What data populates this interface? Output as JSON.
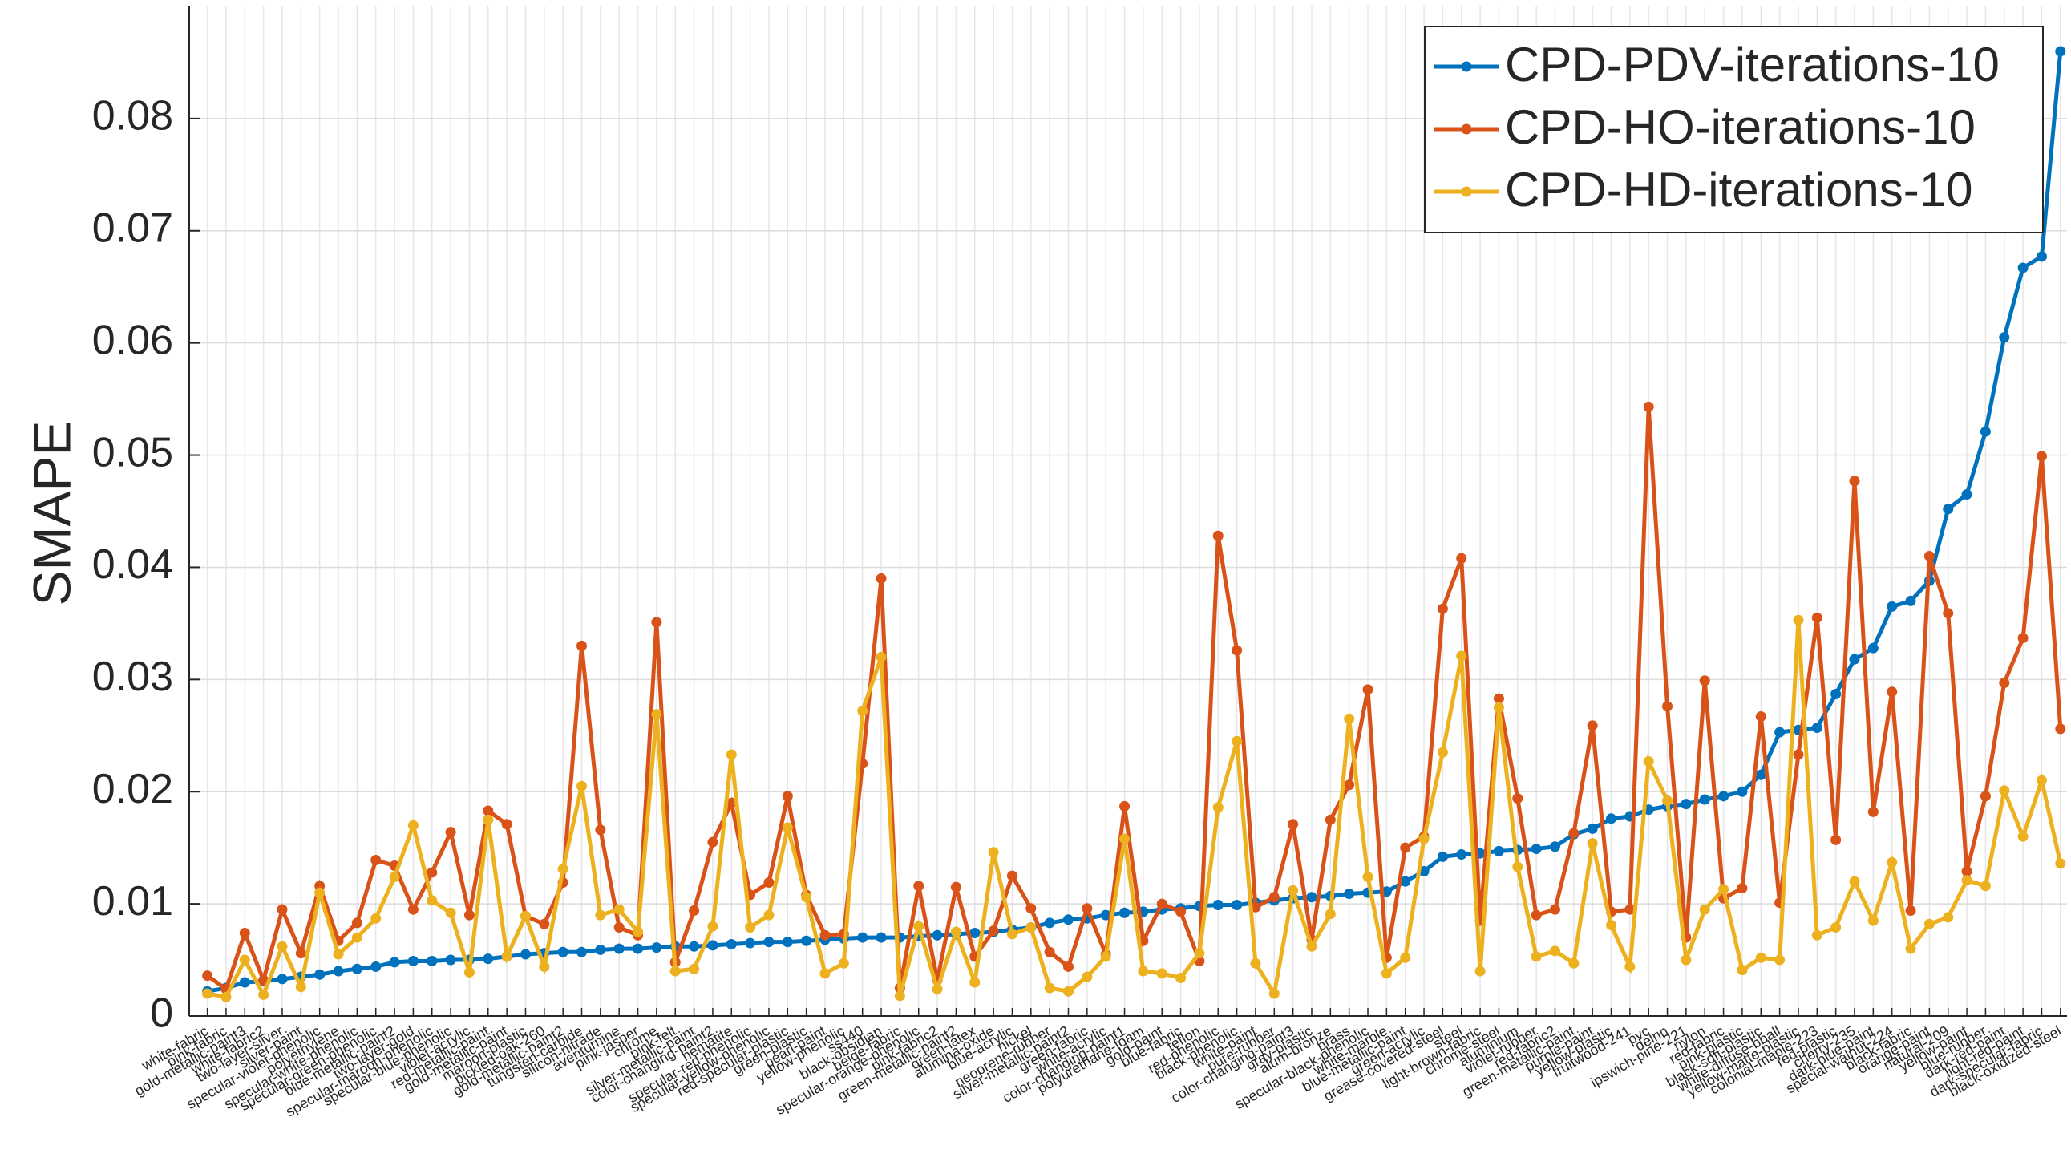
{
  "chart_data": {
    "type": "line",
    "y_label": "SMAPE",
    "categories": [
      "white-fabric",
      "pink-fabric",
      "gold-metallic-paint3",
      "white-fabric2",
      "two-layer-silver",
      "silver-paint",
      "specular-violet-phenolic",
      "polyethylene",
      "specular-white-phenolic",
      "specular-green-phenolic",
      "blue-metallic-paint2",
      "two-layer-gold",
      "specular-maroon-phenolic",
      "specular-blue-phenolic",
      "violet-acrylic",
      "red-metallic-paint",
      "gold-metallic-paint",
      "maroon-plastic",
      "pickled-oak-260",
      "gold-metallic-paint2",
      "tungsten-carbide",
      "silicon-nitrade",
      "aventurnine",
      "pink-jasper",
      "chrome",
      "pink-felt",
      "silver-metallic-paint",
      "color-changing-paint2",
      "hematite",
      "specular-red-phenolic",
      "specular-yellow-phenolic",
      "red-specular-plastic",
      "green-plastic",
      "pearl-paint",
      "yellow-phenolic",
      "ss440",
      "black-obsidian",
      "beige-fabric",
      "specular-orange-phenolic",
      "pink-fabric2",
      "green-metallic-paint2",
      "green-latex",
      "alumina-oxide",
      "blue-acrylic",
      "nickel",
      "neoprene-rubber",
      "silver-metallic-paint2",
      "green-fabric",
      "white-acrylic",
      "color-changing-paint1",
      "polyurethane-foam",
      "gold-paint",
      "blue-fabric",
      "teflon",
      "red-phenolic",
      "black-phenolic",
      "white-paint",
      "pure-rubber",
      "color-changing-paint3",
      "gray-plastic",
      "alum-bronze",
      "brass",
      "specular-black-phenolic",
      "white-marble",
      "blue-metallic-paint",
      "green-acrylic",
      "grease-covered-steel",
      "steel",
      "light-brown-fabric",
      "chrome-steel",
      "aluminium",
      "violet-rubber",
      "red-fabric2",
      "green-metallic-paint",
      "purple-paint",
      "yellow-plastic",
      "fruitwood-241",
      "pvc",
      "delrin",
      "ipswich-pine-221",
      "nylon",
      "red-fabric",
      "pink-plastic",
      "black-soft-plastic",
      "white-diffuse-bball",
      "yellow-matte-plastic",
      "colonial-maple-223",
      "red-plastic",
      "cherry-235",
      "dark-blue-paint",
      "special-walnut-224",
      "black-fabric",
      "orange-paint",
      "natural-209",
      "yellow-paint",
      "blue-rubber",
      "dark-red-paint",
      "light-red-paint",
      "dark-specular-fabric",
      "black-oxidized-steel"
    ],
    "series": [
      {
        "name": "CPD-PDV-iterations-10",
        "color": "#0072BD",
        "values": [
          0.0022,
          0.0025,
          0.003,
          0.0031,
          0.0033,
          0.0035,
          0.0037,
          0.004,
          0.0042,
          0.0044,
          0.0048,
          0.0049,
          0.0049,
          0.005,
          0.005,
          0.0051,
          0.0053,
          0.0055,
          0.0056,
          0.0057,
          0.0057,
          0.0059,
          0.006,
          0.006,
          0.0061,
          0.0062,
          0.0062,
          0.0063,
          0.0064,
          0.0065,
          0.0066,
          0.0066,
          0.0067,
          0.0068,
          0.0069,
          0.007,
          0.007,
          0.007,
          0.0071,
          0.0072,
          0.0073,
          0.0074,
          0.0075,
          0.0077,
          0.0079,
          0.0083,
          0.0086,
          0.0087,
          0.009,
          0.0092,
          0.0093,
          0.0095,
          0.0096,
          0.0098,
          0.0099,
          0.0099,
          0.0101,
          0.0103,
          0.0105,
          0.0106,
          0.0107,
          0.0109,
          0.011,
          0.0111,
          0.012,
          0.0129,
          0.0142,
          0.0144,
          0.0145,
          0.0147,
          0.0148,
          0.0149,
          0.0151,
          0.0162,
          0.0167,
          0.0176,
          0.0178,
          0.0184,
          0.0187,
          0.0189,
          0.0193,
          0.0196,
          0.02,
          0.0215,
          0.0253,
          0.0255,
          0.0257,
          0.0287,
          0.0318,
          0.0328,
          0.0365,
          0.037,
          0.0388,
          0.0452,
          0.0465,
          0.0521,
          0.0605,
          0.0667,
          0.0677,
          0.086
        ]
      },
      {
        "name": "CPD-HO-iterations-10",
        "color": "#D95319",
        "values": [
          0.0036,
          0.0024,
          0.0074,
          0.0032,
          0.0095,
          0.0056,
          0.0116,
          0.0067,
          0.0083,
          0.0139,
          0.0134,
          0.0095,
          0.0128,
          0.0164,
          0.009,
          0.0183,
          0.0171,
          0.0089,
          0.0082,
          0.0119,
          0.033,
          0.0166,
          0.0079,
          0.0072,
          0.0351,
          0.0048,
          0.0094,
          0.0155,
          0.019,
          0.0108,
          0.0119,
          0.0196,
          0.0108,
          0.0072,
          0.0073,
          0.0225,
          0.039,
          0.0025,
          0.0116,
          0.0032,
          0.0115,
          0.0053,
          0.0076,
          0.0125,
          0.0096,
          0.0057,
          0.0044,
          0.0096,
          0.0055,
          0.0187,
          0.0067,
          0.01,
          0.0093,
          0.0049,
          0.0428,
          0.0326,
          0.0097,
          0.0106,
          0.0171,
          0.0068,
          0.0175,
          0.0206,
          0.0291,
          0.0052,
          0.015,
          0.016,
          0.0363,
          0.0408,
          0.0085,
          0.0283,
          0.0194,
          0.009,
          0.0095,
          0.0163,
          0.0259,
          0.0093,
          0.0095,
          0.0543,
          0.0276,
          0.007,
          0.0299,
          0.0105,
          0.0114,
          0.0267,
          0.0101,
          0.0233,
          0.0355,
          0.0157,
          0.0477,
          0.0182,
          0.0289,
          0.0094,
          0.041,
          0.0359,
          0.0129,
          0.0196,
          0.0297,
          0.0337,
          0.0499,
          0.0256
        ]
      },
      {
        "name": "CPD-HD-iterations-10",
        "color": "#EDB120",
        "values": [
          0.002,
          0.0017,
          0.005,
          0.0019,
          0.0062,
          0.0026,
          0.011,
          0.0055,
          0.007,
          0.0087,
          0.0124,
          0.017,
          0.0103,
          0.0092,
          0.0039,
          0.0175,
          0.0053,
          0.0089,
          0.0044,
          0.0131,
          0.0205,
          0.009,
          0.0095,
          0.0075,
          0.0269,
          0.004,
          0.0042,
          0.008,
          0.0233,
          0.0079,
          0.009,
          0.0168,
          0.0106,
          0.0038,
          0.0047,
          0.0272,
          0.032,
          0.0018,
          0.008,
          0.0024,
          0.0075,
          0.003,
          0.0146,
          0.0073,
          0.0079,
          0.0025,
          0.0022,
          0.0035,
          0.0053,
          0.0158,
          0.004,
          0.0038,
          0.0034,
          0.0056,
          0.0186,
          0.0245,
          0.0047,
          0.002,
          0.0112,
          0.0062,
          0.0091,
          0.0265,
          0.0124,
          0.0038,
          0.0052,
          0.0158,
          0.0235,
          0.0321,
          0.004,
          0.0275,
          0.0133,
          0.0053,
          0.0058,
          0.0047,
          0.0154,
          0.0081,
          0.0044,
          0.0227,
          0.0192,
          0.005,
          0.0095,
          0.0113,
          0.0041,
          0.0052,
          0.005,
          0.0353,
          0.0072,
          0.0079,
          0.012,
          0.0085,
          0.0137,
          0.006,
          0.0082,
          0.0088,
          0.0121,
          0.0116,
          0.0201,
          0.016,
          0.021,
          0.0136
        ]
      }
    ],
    "ylim": [
      0,
      0.09
    ],
    "yticks": [
      0,
      0.01,
      0.02,
      0.03,
      0.04,
      0.05,
      0.06,
      0.07,
      0.08
    ],
    "grid": true,
    "legend": "northeast"
  }
}
